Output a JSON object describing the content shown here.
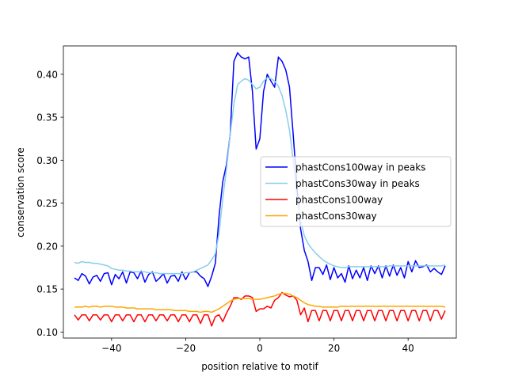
{
  "chart_data": {
    "type": "line",
    "title": "",
    "xlabel": "position relative to motif",
    "ylabel": "conservation score",
    "xlim": [
      -53,
      53
    ],
    "ylim": [
      0.093,
      0.433
    ],
    "xticks": [
      -40,
      -20,
      0,
      20,
      40
    ],
    "xtick_labels": [
      "−40",
      "−20",
      "0",
      "20",
      "40"
    ],
    "yticks": [
      0.1,
      0.15,
      0.2,
      0.25,
      0.3,
      0.35,
      0.4
    ],
    "ytick_labels": [
      "0.10",
      "0.15",
      "0.20",
      "0.25",
      "0.30",
      "0.35",
      "0.40"
    ],
    "legend_position": "center-right",
    "x": [
      -50,
      -49,
      -48,
      -47,
      -46,
      -45,
      -44,
      -43,
      -42,
      -41,
      -40,
      -39,
      -38,
      -37,
      -36,
      -35,
      -34,
      -33,
      -32,
      -31,
      -30,
      -29,
      -28,
      -27,
      -26,
      -25,
      -24,
      -23,
      -22,
      -21,
      -20,
      -19,
      -18,
      -17,
      -16,
      -15,
      -14,
      -13,
      -12,
      -11,
      -10,
      -9,
      -8,
      -7,
      -6,
      -5,
      -4,
      -3,
      -2,
      -1,
      0,
      1,
      2,
      3,
      4,
      5,
      6,
      7,
      8,
      9,
      10,
      11,
      12,
      13,
      14,
      15,
      16,
      17,
      18,
      19,
      20,
      21,
      22,
      23,
      24,
      25,
      26,
      27,
      28,
      29,
      30,
      31,
      32,
      33,
      34,
      35,
      36,
      37,
      38,
      39,
      40,
      41,
      42,
      43,
      44,
      45,
      46,
      47,
      48,
      49,
      50
    ],
    "series": [
      {
        "name": "phastCons100way in peaks",
        "color": "#0000ff",
        "values": [
          0.163,
          0.16,
          0.168,
          0.165,
          0.156,
          0.164,
          0.166,
          0.159,
          0.168,
          0.169,
          0.155,
          0.167,
          0.162,
          0.17,
          0.157,
          0.17,
          0.169,
          0.162,
          0.171,
          0.158,
          0.167,
          0.17,
          0.159,
          0.163,
          0.168,
          0.157,
          0.165,
          0.166,
          0.159,
          0.17,
          0.161,
          0.169,
          0.17,
          0.17,
          0.165,
          0.162,
          0.153,
          0.165,
          0.18,
          0.235,
          0.275,
          0.295,
          0.33,
          0.415,
          0.425,
          0.42,
          0.418,
          0.42,
          0.38,
          0.313,
          0.325,
          0.38,
          0.4,
          0.392,
          0.385,
          0.42,
          0.415,
          0.405,
          0.385,
          0.33,
          0.27,
          0.22,
          0.195,
          0.182,
          0.16,
          0.175,
          0.175,
          0.167,
          0.178,
          0.161,
          0.175,
          0.163,
          0.168,
          0.158,
          0.177,
          0.162,
          0.172,
          0.163,
          0.175,
          0.16,
          0.177,
          0.168,
          0.177,
          0.163,
          0.177,
          0.165,
          0.178,
          0.166,
          0.175,
          0.163,
          0.182,
          0.17,
          0.183,
          0.175,
          0.176,
          0.178,
          0.17,
          0.174,
          0.17,
          0.167,
          0.177
        ]
      },
      {
        "name": "phastCons30way in peaks",
        "color": "#87ceeb",
        "values": [
          0.181,
          0.18,
          0.182,
          0.181,
          0.181,
          0.18,
          0.18,
          0.179,
          0.178,
          0.177,
          0.174,
          0.173,
          0.172,
          0.172,
          0.171,
          0.171,
          0.17,
          0.17,
          0.17,
          0.17,
          0.169,
          0.169,
          0.169,
          0.168,
          0.168,
          0.168,
          0.168,
          0.168,
          0.168,
          0.168,
          0.169,
          0.169,
          0.17,
          0.172,
          0.174,
          0.176,
          0.178,
          0.184,
          0.191,
          0.215,
          0.255,
          0.29,
          0.33,
          0.365,
          0.388,
          0.392,
          0.395,
          0.393,
          0.388,
          0.383,
          0.385,
          0.392,
          0.396,
          0.395,
          0.392,
          0.386,
          0.375,
          0.358,
          0.335,
          0.3,
          0.255,
          0.23,
          0.212,
          0.203,
          0.197,
          0.192,
          0.188,
          0.184,
          0.181,
          0.179,
          0.177,
          0.176,
          0.175,
          0.175,
          0.176,
          0.176,
          0.176,
          0.176,
          0.176,
          0.176,
          0.176,
          0.176,
          0.176,
          0.176,
          0.176,
          0.177,
          0.177,
          0.177,
          0.177,
          0.177,
          0.177,
          0.177,
          0.177,
          0.177,
          0.177,
          0.177,
          0.177,
          0.177,
          0.177,
          0.177,
          0.178
        ]
      },
      {
        "name": "phastCons100way",
        "color": "#ff0000",
        "values": [
          0.12,
          0.114,
          0.12,
          0.12,
          0.113,
          0.12,
          0.12,
          0.114,
          0.12,
          0.12,
          0.112,
          0.12,
          0.12,
          0.113,
          0.12,
          0.12,
          0.112,
          0.12,
          0.12,
          0.112,
          0.12,
          0.12,
          0.113,
          0.12,
          0.12,
          0.113,
          0.12,
          0.12,
          0.112,
          0.12,
          0.12,
          0.112,
          0.12,
          0.12,
          0.11,
          0.12,
          0.12,
          0.107,
          0.118,
          0.12,
          0.112,
          0.122,
          0.13,
          0.14,
          0.14,
          0.138,
          0.142,
          0.142,
          0.14,
          0.124,
          0.127,
          0.127,
          0.13,
          0.128,
          0.137,
          0.14,
          0.146,
          0.143,
          0.141,
          0.142,
          0.137,
          0.12,
          0.128,
          0.112,
          0.125,
          0.125,
          0.113,
          0.125,
          0.125,
          0.113,
          0.125,
          0.125,
          0.113,
          0.125,
          0.125,
          0.113,
          0.125,
          0.125,
          0.113,
          0.125,
          0.125,
          0.113,
          0.125,
          0.125,
          0.113,
          0.125,
          0.125,
          0.113,
          0.125,
          0.125,
          0.113,
          0.125,
          0.125,
          0.113,
          0.125,
          0.125,
          0.113,
          0.125,
          0.125,
          0.115,
          0.125
        ]
      },
      {
        "name": "phastCons30way",
        "color": "#ffa500",
        "values": [
          0.129,
          0.129,
          0.129,
          0.13,
          0.129,
          0.13,
          0.13,
          0.129,
          0.13,
          0.13,
          0.13,
          0.129,
          0.129,
          0.129,
          0.128,
          0.128,
          0.128,
          0.127,
          0.127,
          0.127,
          0.127,
          0.127,
          0.126,
          0.126,
          0.126,
          0.126,
          0.126,
          0.125,
          0.125,
          0.125,
          0.125,
          0.124,
          0.124,
          0.124,
          0.123,
          0.124,
          0.124,
          0.123,
          0.125,
          0.127,
          0.13,
          0.133,
          0.136,
          0.138,
          0.139,
          0.139,
          0.139,
          0.139,
          0.138,
          0.138,
          0.138,
          0.139,
          0.14,
          0.141,
          0.142,
          0.144,
          0.145,
          0.145,
          0.144,
          0.142,
          0.14,
          0.137,
          0.134,
          0.132,
          0.131,
          0.13,
          0.13,
          0.129,
          0.129,
          0.129,
          0.129,
          0.129,
          0.13,
          0.13,
          0.13,
          0.13,
          0.13,
          0.13,
          0.13,
          0.13,
          0.13,
          0.13,
          0.13,
          0.13,
          0.13,
          0.13,
          0.13,
          0.13,
          0.13,
          0.13,
          0.13,
          0.13,
          0.13,
          0.13,
          0.13,
          0.13,
          0.13,
          0.13,
          0.13,
          0.13,
          0.129
        ]
      }
    ]
  }
}
